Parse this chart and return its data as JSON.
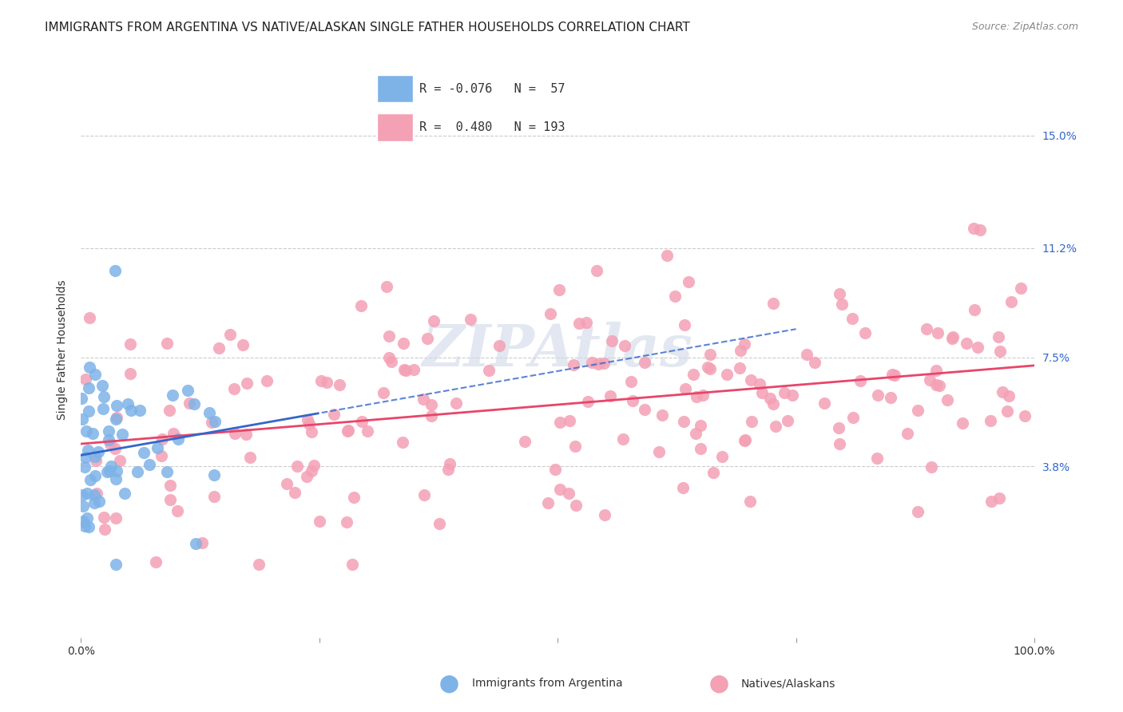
{
  "title": "IMMIGRANTS FROM ARGENTINA VS NATIVE/ALASKAN SINGLE FATHER HOUSEHOLDS CORRELATION CHART",
  "source": "Source: ZipAtlas.com",
  "ylabel": "Single Father Households",
  "xlabel_ticks": [
    "0.0%",
    "100.0%"
  ],
  "ytick_labels": [
    "3.8%",
    "7.5%",
    "11.2%",
    "15.0%"
  ],
  "ytick_values": [
    0.038,
    0.075,
    0.112,
    0.15
  ],
  "xlim": [
    0.0,
    1.0
  ],
  "ylim": [
    -0.02,
    0.175
  ],
  "legend1_label": "Immigrants from Argentina",
  "legend2_label": "Natives/Alaskans",
  "R_argentina": -0.076,
  "N_argentina": 57,
  "R_natives": 0.48,
  "N_natives": 193,
  "argentina_color": "#7EB3E8",
  "natives_color": "#F4A0B5",
  "argentina_line_color": "#3366CC",
  "natives_line_color": "#E8456A",
  "background_color": "#FFFFFF",
  "watermark_text": "ZIPAtlas",
  "watermark_color": "#D0D8E8",
  "title_fontsize": 11,
  "source_fontsize": 9,
  "axis_label_fontsize": 10,
  "tick_fontsize": 10,
  "legend_fontsize": 11
}
